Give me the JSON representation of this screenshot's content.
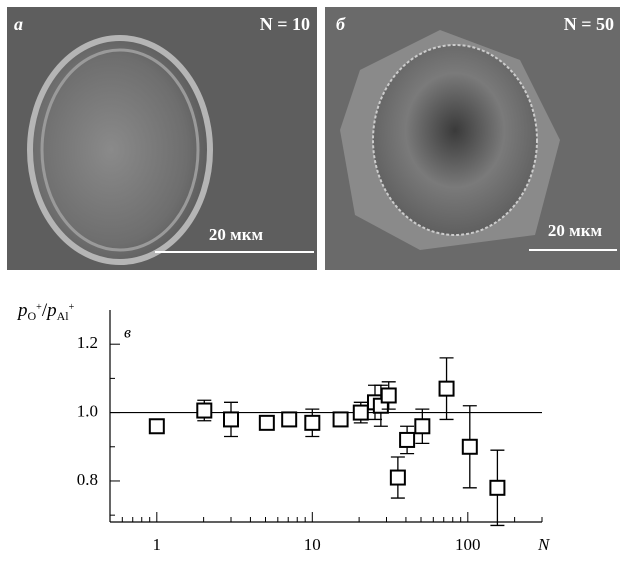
{
  "panels": [
    {
      "label": "а",
      "caption": "N = 10",
      "scale_bar": "20 мкм"
    },
    {
      "label": "б",
      "caption": "N = 50",
      "scale_bar": "20 мкм"
    }
  ],
  "chart_data": {
    "type": "scatter",
    "label": "в",
    "ylabel": {
      "num": "p",
      "num_sub": "O",
      "num_sup": "+",
      "slash": "/",
      "den": "p",
      "den_sub": "Al",
      "den_sup": "+"
    },
    "xlabel": "N",
    "x": [
      1,
      2.02,
      3,
      5.1,
      7.1,
      10,
      15.2,
      20.5,
      25.3,
      27.6,
      31,
      35.5,
      40.7,
      51,
      73,
      103,
      155
    ],
    "values": [
      0.96,
      1.006,
      0.98,
      0.97,
      0.98,
      0.97,
      0.98,
      1.0,
      1.03,
      1.02,
      1.05,
      0.81,
      0.92,
      0.96,
      1.07,
      0.9,
      0.78
    ],
    "errors": [
      0.01,
      0.03,
      0.05,
      0.015,
      0.01,
      0.04,
      0.02,
      0.03,
      0.05,
      0.06,
      0.04,
      0.06,
      0.04,
      0.05,
      0.09,
      0.12,
      0.11
    ],
    "xlim": [
      0.5,
      300
    ],
    "ylim": [
      0.68,
      1.3
    ],
    "xscale": "log",
    "xticks": [
      1,
      10,
      100
    ],
    "xminor": [
      0.5,
      0.6,
      0.7,
      0.8,
      0.9,
      2,
      3,
      4,
      5,
      6,
      7,
      8,
      9,
      20,
      30,
      40,
      50,
      60,
      70,
      80,
      90,
      200,
      300
    ],
    "yticks": [
      0.8,
      {
        "value": 1,
        "label": "1.0"
      },
      1.2
    ],
    "yminor": [
      0.7,
      0.9,
      1.1
    ],
    "reference_line": 1
  }
}
